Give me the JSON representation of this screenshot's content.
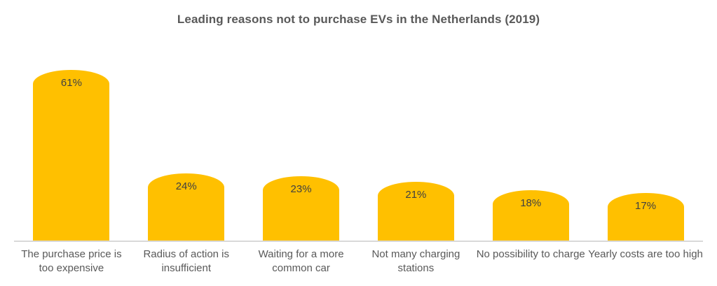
{
  "chart_data": {
    "type": "bar",
    "title": "Leading reasons not to purchase EVs in the Netherlands (2019)",
    "categories": [
      "The purchase price is too expensive",
      "Radius of action is insufficient",
      "Waiting for a more common car",
      "Not many charging stations",
      "No possibility to charge",
      "Yearly costs are too high"
    ],
    "values": [
      61,
      24,
      23,
      21,
      18,
      17
    ],
    "data_labels": [
      "61%",
      "24%",
      "23%",
      "21%",
      "18%",
      "17%"
    ],
    "xlabel": "",
    "ylabel": "",
    "ylim": [
      0,
      71
    ],
    "grid": false,
    "legend": false,
    "y_axis_visible": false,
    "colors": {
      "bar": "#FFC000",
      "value_label": "#404040",
      "category_label": "#595959",
      "title": "#595959",
      "axis_line": "#D9D9D9",
      "background": "#FFFFFF"
    }
  }
}
